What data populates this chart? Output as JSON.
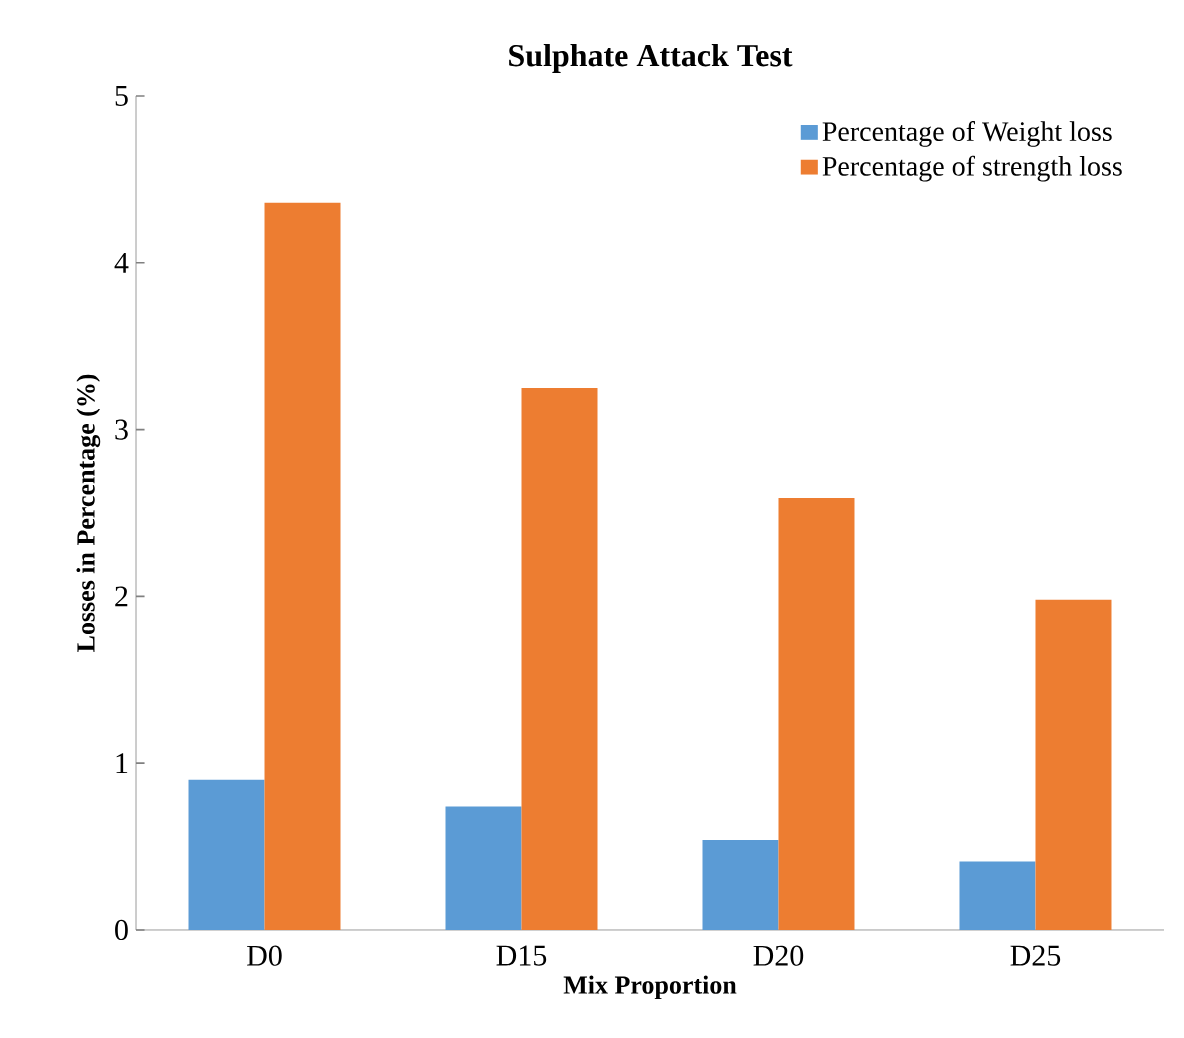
{
  "chart_data": {
    "type": "bar",
    "title": "Sulphate Attack Test",
    "xlabel": "Mix Proportion",
    "ylabel": "Losses in Percentage (%)",
    "categories": [
      "D0",
      "D15",
      "D20",
      "D25"
    ],
    "series": [
      {
        "name": "Percentage of Weight loss",
        "color": "#5b9bd5",
        "values": [
          0.9,
          0.74,
          0.54,
          0.41
        ]
      },
      {
        "name": "Percentage of strength loss",
        "color": "#ed7d31",
        "values": [
          4.36,
          3.25,
          2.59,
          1.98
        ]
      }
    ],
    "ylim": [
      0,
      5
    ],
    "yticks": [
      0,
      1,
      2,
      3,
      4,
      5
    ],
    "legend": "top right"
  }
}
